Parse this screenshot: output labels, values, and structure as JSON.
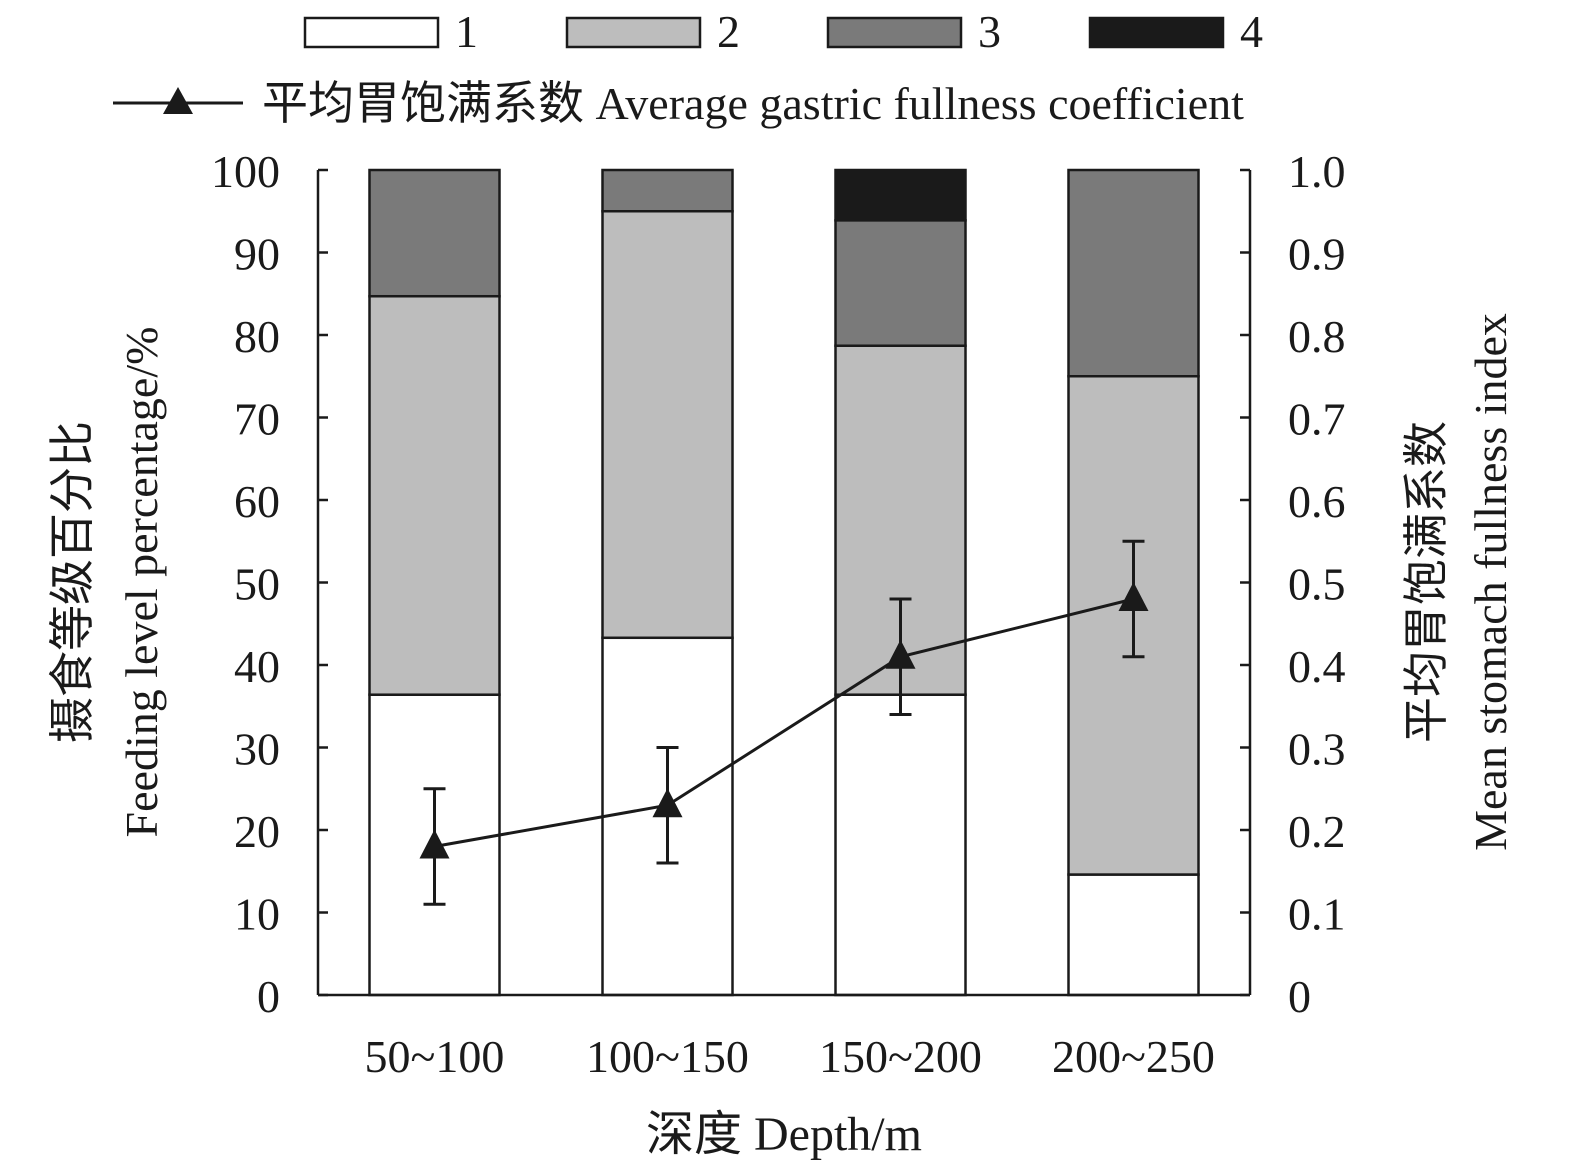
{
  "chart_data": {
    "type": "bar",
    "stacked": true,
    "categories": [
      "50~100",
      "100~150",
      "150~200",
      "200~250"
    ],
    "series": [
      {
        "name": "1",
        "color": "#ffffff",
        "values": [
          36.4,
          43.3,
          36.4,
          14.6
        ]
      },
      {
        "name": "2",
        "color": "#bdbdbd",
        "values": [
          48.3,
          51.7,
          42.3,
          60.4
        ]
      },
      {
        "name": "3",
        "color": "#7a7a7a",
        "values": [
          15.3,
          5.0,
          15.2,
          25.0
        ]
      },
      {
        "name": "4",
        "color": "#1a1a1a",
        "values": [
          0,
          0,
          6.1,
          0
        ]
      }
    ],
    "line_series": {
      "name": "平均胃饱满系数  Average gastric fullness coefficient",
      "axis": "right",
      "values": [
        0.18,
        0.23,
        0.41,
        0.48
      ],
      "error_low": [
        0.11,
        0.16,
        0.34,
        0.41
      ],
      "error_high": [
        0.25,
        0.3,
        0.48,
        0.55
      ]
    },
    "xlabel": "深度  Depth/m",
    "ylabel_left_cn": "摄食等级百分比",
    "ylabel_left_en": "Feeding level percentage/%",
    "ylabel_right_cn": "平均胃饱满系数",
    "ylabel_right_en": "Mean stomach fullness index",
    "ylim_left": [
      0,
      100
    ],
    "ylim_right": [
      0,
      1.0
    ],
    "yticks_left": [
      "0",
      "10",
      "20",
      "30",
      "40",
      "50",
      "60",
      "70",
      "80",
      "90",
      "100"
    ],
    "yticks_right": [
      "0",
      "0.1",
      "0.2",
      "0.3",
      "0.4",
      "0.5",
      "0.6",
      "0.7",
      "0.8",
      "0.9",
      "1.0"
    ],
    "legend_position": "top",
    "grid": false
  }
}
